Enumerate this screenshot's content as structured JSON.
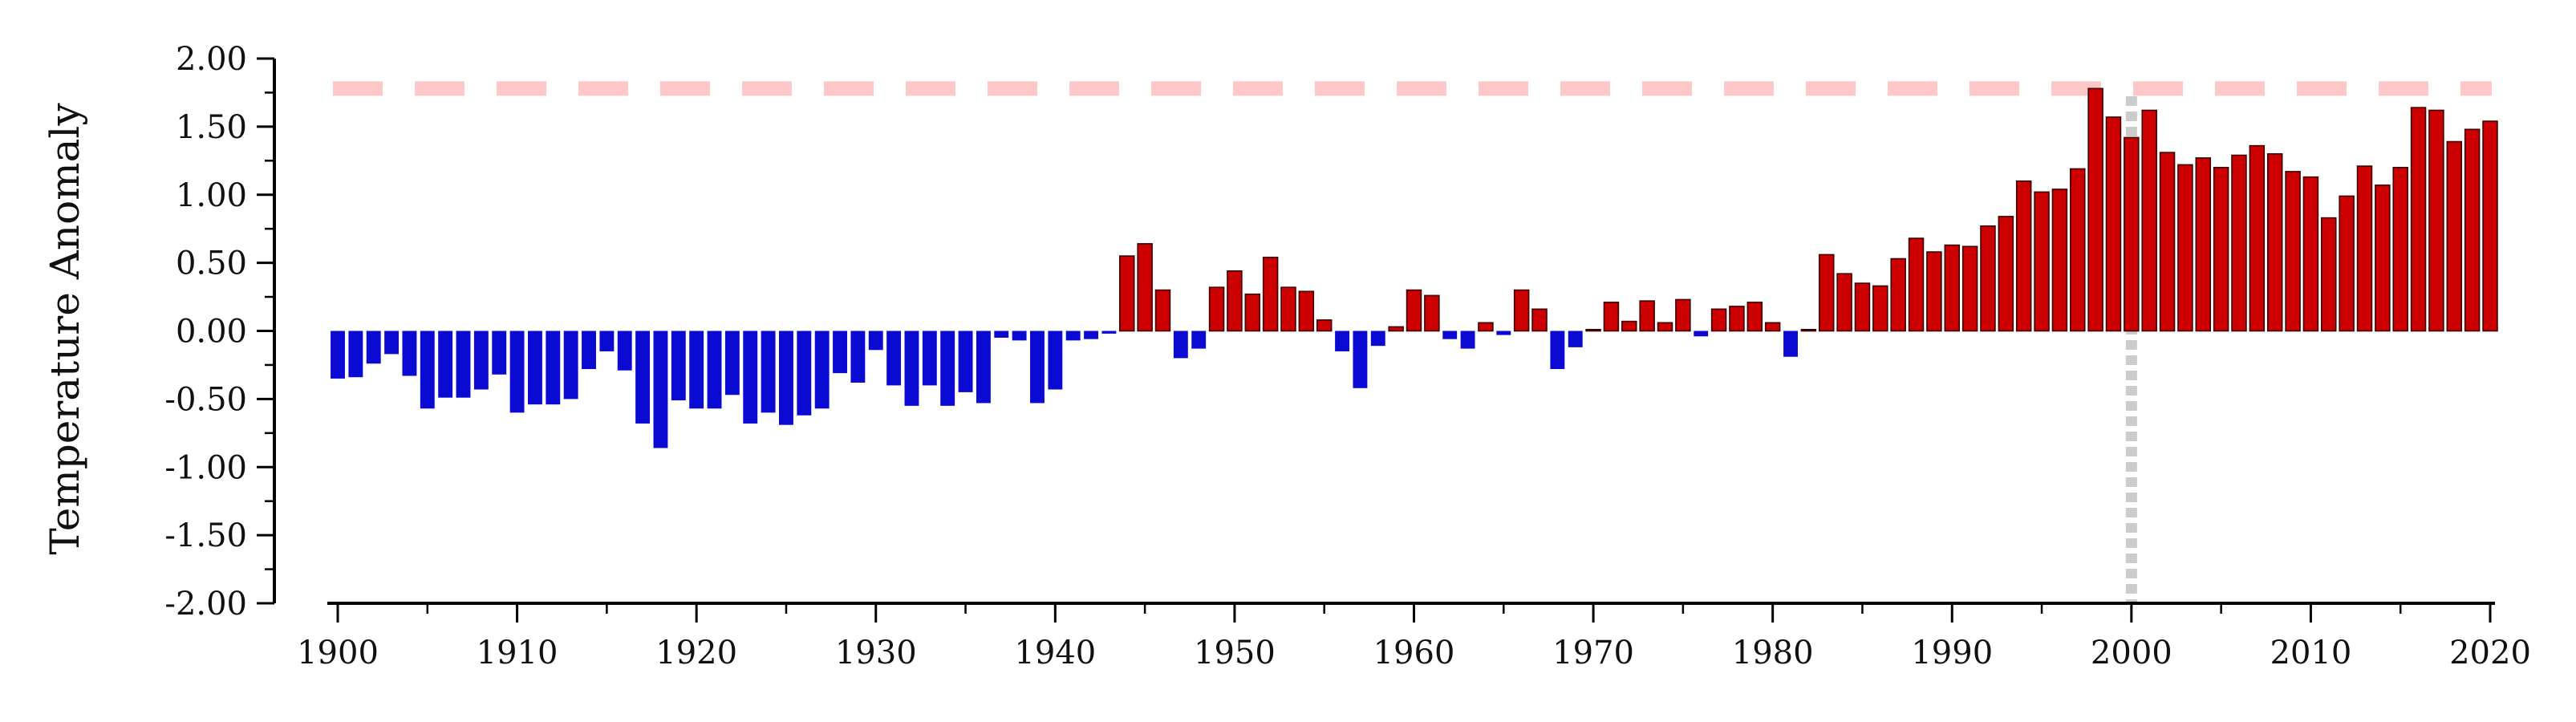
{
  "chart_data": {
    "type": "bar",
    "title": "",
    "xlabel": "",
    "ylabel": "Temperature Anomaly",
    "xlim": [
      1900,
      2020
    ],
    "ylim": [
      -2.0,
      2.0
    ],
    "x_ticks": [
      "1900",
      "1910",
      "1920",
      "1930",
      "1940",
      "1950",
      "1960",
      "1970",
      "1980",
      "1990",
      "2000",
      "2010",
      "2020"
    ],
    "y_ticks": [
      "2.00",
      "1.50",
      "1.00",
      "0.50",
      "0.00",
      "-0.50",
      "-1.00",
      "-1.50",
      "-2.00"
    ],
    "grid": false,
    "colors": {
      "positive": "#cc0000",
      "negative": "#0a0ad2",
      "reference_line": "#ffc8c8",
      "marker_line": "#cccccc",
      "axis": "#000000"
    },
    "reference_line_y": 1.78,
    "vertical_marker_x": 2000,
    "series": [
      {
        "x": [
          1900,
          1901,
          1902,
          1903,
          1904,
          1905,
          1906,
          1907,
          1908,
          1909,
          1910,
          1911,
          1912,
          1913,
          1914,
          1915,
          1916,
          1917,
          1918,
          1919,
          1920,
          1921,
          1922,
          1923,
          1924,
          1925,
          1926,
          1927,
          1928,
          1929,
          1930,
          1931,
          1932,
          1933,
          1934,
          1935,
          1936,
          1937,
          1938,
          1939,
          1940,
          1941,
          1942,
          1943,
          1944,
          1945,
          1946,
          1947,
          1948,
          1949,
          1950,
          1951,
          1952,
          1953,
          1954,
          1955,
          1956,
          1957,
          1958,
          1959,
          1960,
          1961,
          1962,
          1963,
          1964,
          1965,
          1966,
          1967,
          1968,
          1969,
          1970,
          1971,
          1972,
          1973,
          1974,
          1975,
          1976,
          1977,
          1978,
          1979,
          1980,
          1981,
          1982,
          1983,
          1984,
          1985,
          1986,
          1987,
          1988,
          1989,
          1990,
          1991,
          1992,
          1993,
          1994,
          1995,
          1996,
          1997,
          1998,
          1999,
          2000,
          2001,
          2002,
          2003,
          2004,
          2005,
          2006,
          2007,
          2008,
          2009,
          2010,
          2011,
          2012,
          2013,
          2014,
          2015,
          2016,
          2017,
          2018,
          2019,
          2020
        ],
        "values": [
          -0.35,
          -0.34,
          -0.24,
          -0.17,
          -0.33,
          -0.57,
          -0.49,
          -0.49,
          -0.43,
          -0.32,
          -0.6,
          -0.54,
          -0.54,
          -0.5,
          -0.28,
          -0.15,
          -0.29,
          -0.68,
          -0.86,
          -0.51,
          -0.57,
          -0.57,
          -0.47,
          -0.68,
          -0.6,
          -0.69,
          -0.62,
          -0.57,
          -0.31,
          -0.38,
          -0.14,
          -0.4,
          -0.55,
          -0.4,
          -0.55,
          -0.45,
          -0.53,
          -0.05,
          -0.07,
          -0.53,
          -0.43,
          -0.07,
          -0.06,
          -0.02,
          0.55,
          0.64,
          0.3,
          -0.2,
          -0.13,
          0.32,
          0.44,
          0.27,
          0.54,
          0.32,
          0.29,
          0.08,
          -0.15,
          -0.42,
          -0.11,
          0.03,
          0.3,
          0.26,
          -0.06,
          -0.13,
          0.06,
          -0.03,
          0.3,
          0.16,
          -0.28,
          -0.12,
          0.01,
          0.21,
          0.07,
          0.22,
          0.06,
          0.23,
          -0.04,
          0.16,
          0.18,
          0.21,
          0.06,
          -0.19,
          0.01,
          0.56,
          0.42,
          0.35,
          0.33,
          0.53,
          0.68,
          0.58,
          0.63,
          0.62,
          0.77,
          0.84,
          1.1,
          1.02,
          1.04,
          1.19,
          1.78,
          1.57,
          1.42,
          1.62,
          1.31,
          1.22,
          1.27,
          1.2,
          1.29,
          1.36,
          1.3,
          1.17,
          1.13,
          0.83,
          0.99,
          1.21,
          1.07,
          1.2,
          1.64,
          1.62,
          1.39,
          1.48,
          1.54
        ]
      }
    ]
  }
}
